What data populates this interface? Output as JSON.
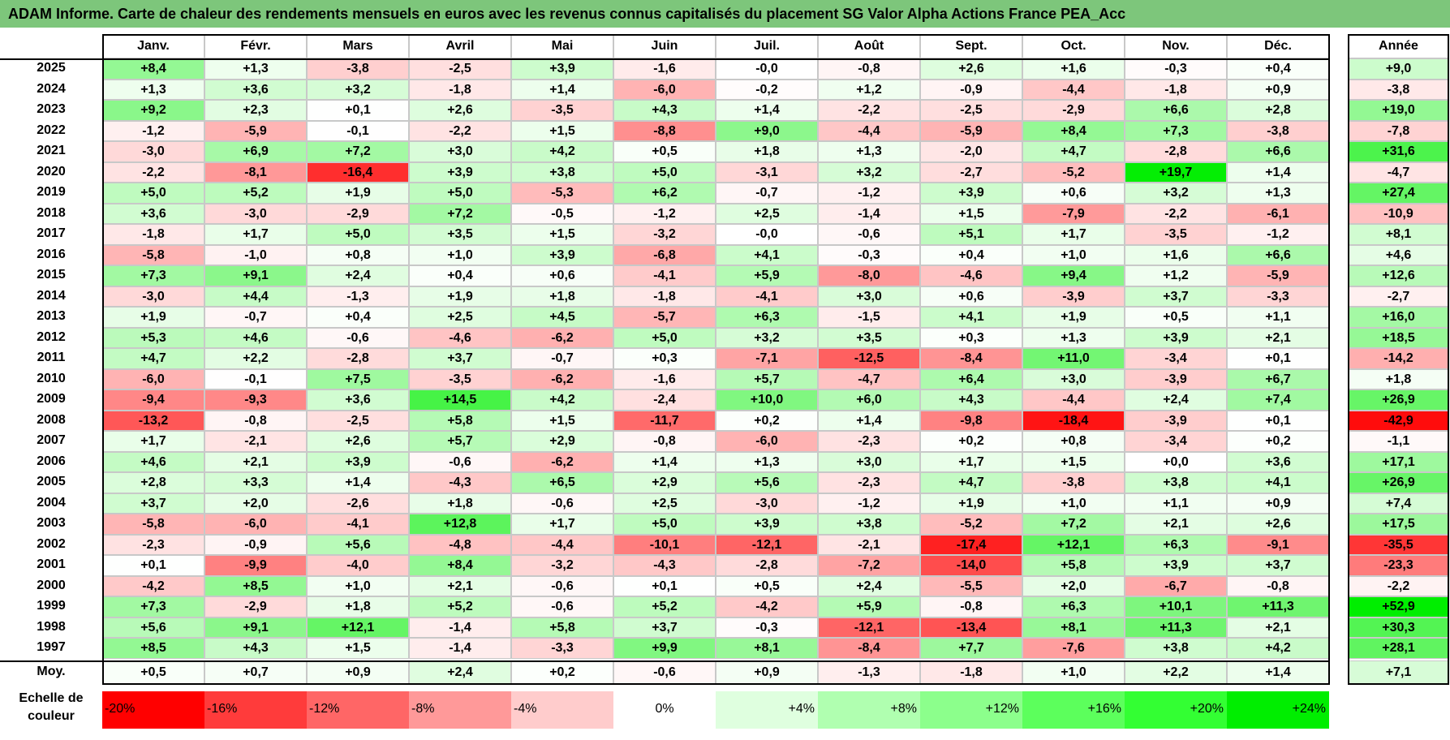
{
  "title": "ADAM Informe. Carte de chaleur des rendements mensuels en euros avec les revenus connus capitalisés du placement SG Valor Alpha Actions France PEA_Acc",
  "chart_data": {
    "type": "heatmap",
    "title": "ADAM Informe. Carte de chaleur des rendements mensuels en euros avec les revenus connus capitalisés du placement SG Valor Alpha Actions France PEA_Acc",
    "columns": [
      "Janv.",
      "Févr.",
      "Mars",
      "Avril",
      "Mai",
      "Juin",
      "Juil.",
      "Août",
      "Sept.",
      "Oct.",
      "Nov.",
      "Déc."
    ],
    "annual_column": "Année",
    "rows": [
      {
        "year": "2025",
        "values": [
          "+8,4",
          "+1,3",
          "-3,8",
          "-2,5",
          "+3,9",
          "-1,6",
          "-0,0",
          "-0,8",
          "+2,6",
          "+1,6",
          "-0,3",
          "+0,4"
        ],
        "annual": "+9,0"
      },
      {
        "year": "2024",
        "values": [
          "+1,3",
          "+3,6",
          "+3,2",
          "-1,8",
          "+1,4",
          "-6,0",
          "-0,2",
          "+1,2",
          "-0,9",
          "-4,4",
          "-1,8",
          "+0,9"
        ],
        "annual": "-3,8"
      },
      {
        "year": "2023",
        "values": [
          "+9,2",
          "+2,3",
          "+0,1",
          "+2,6",
          "-3,5",
          "+4,3",
          "+1,4",
          "-2,2",
          "-2,5",
          "-2,9",
          "+6,6",
          "+2,8"
        ],
        "annual": "+19,0"
      },
      {
        "year": "2022",
        "values": [
          "-1,2",
          "-5,9",
          "-0,1",
          "-2,2",
          "+1,5",
          "-8,8",
          "+9,0",
          "-4,4",
          "-5,9",
          "+8,4",
          "+7,3",
          "-3,8"
        ],
        "annual": "-7,8"
      },
      {
        "year": "2021",
        "values": [
          "-3,0",
          "+6,9",
          "+7,2",
          "+3,0",
          "+4,2",
          "+0,5",
          "+1,8",
          "+1,3",
          "-2,0",
          "+4,7",
          "-2,8",
          "+6,6"
        ],
        "annual": "+31,6"
      },
      {
        "year": "2020",
        "values": [
          "-2,2",
          "-8,1",
          "-16,4",
          "+3,9",
          "+3,8",
          "+5,0",
          "-3,1",
          "+3,2",
          "-2,7",
          "-5,2",
          "+19,7",
          "+1,4"
        ],
        "annual": "-4,7"
      },
      {
        "year": "2019",
        "values": [
          "+5,0",
          "+5,2",
          "+1,9",
          "+5,0",
          "-5,3",
          "+6,2",
          "-0,7",
          "-1,2",
          "+3,9",
          "+0,6",
          "+3,2",
          "+1,3"
        ],
        "annual": "+27,4"
      },
      {
        "year": "2018",
        "values": [
          "+3,6",
          "-3,0",
          "-2,9",
          "+7,2",
          "-0,5",
          "-1,2",
          "+2,5",
          "-1,4",
          "+1,5",
          "-7,9",
          "-2,2",
          "-6,1"
        ],
        "annual": "-10,9"
      },
      {
        "year": "2017",
        "values": [
          "-1,8",
          "+1,7",
          "+5,0",
          "+3,5",
          "+1,5",
          "-3,2",
          "-0,0",
          "-0,6",
          "+5,1",
          "+1,7",
          "-3,5",
          "-1,2"
        ],
        "annual": "+8,1"
      },
      {
        "year": "2016",
        "values": [
          "-5,8",
          "-1,0",
          "+0,8",
          "+1,0",
          "+3,9",
          "-6,8",
          "+4,1",
          "-0,3",
          "+0,4",
          "+1,0",
          "+1,6",
          "+6,6"
        ],
        "annual": "+4,6"
      },
      {
        "year": "2015",
        "values": [
          "+7,3",
          "+9,1",
          "+2,4",
          "+0,4",
          "+0,6",
          "-4,1",
          "+5,9",
          "-8,0",
          "-4,6",
          "+9,4",
          "+1,2",
          "-5,9"
        ],
        "annual": "+12,6"
      },
      {
        "year": "2014",
        "values": [
          "-3,0",
          "+4,4",
          "-1,3",
          "+1,9",
          "+1,8",
          "-1,8",
          "-4,1",
          "+3,0",
          "+0,6",
          "-3,9",
          "+3,7",
          "-3,3"
        ],
        "annual": "-2,7"
      },
      {
        "year": "2013",
        "values": [
          "+1,9",
          "-0,7",
          "+0,4",
          "+2,5",
          "+4,5",
          "-5,7",
          "+6,3",
          "-1,5",
          "+4,1",
          "+1,9",
          "+0,5",
          "+1,1"
        ],
        "annual": "+16,0"
      },
      {
        "year": "2012",
        "values": [
          "+5,3",
          "+4,6",
          "-0,6",
          "-4,6",
          "-6,2",
          "+5,0",
          "+3,2",
          "+3,5",
          "+0,3",
          "+1,3",
          "+3,9",
          "+2,1"
        ],
        "annual": "+18,5"
      },
      {
        "year": "2011",
        "values": [
          "+4,7",
          "+2,2",
          "-2,8",
          "+3,7",
          "-0,7",
          "+0,3",
          "-7,1",
          "-12,5",
          "-8,4",
          "+11,0",
          "-3,4",
          "+0,1"
        ],
        "annual": "-14,2"
      },
      {
        "year": "2010",
        "values": [
          "-6,0",
          "-0,1",
          "+7,5",
          "-3,5",
          "-6,2",
          "-1,6",
          "+5,7",
          "-4,7",
          "+6,4",
          "+3,0",
          "-3,9",
          "+6,7"
        ],
        "annual": "+1,8"
      },
      {
        "year": "2009",
        "values": [
          "-9,4",
          "-9,3",
          "+3,6",
          "+14,5",
          "+4,2",
          "-2,4",
          "+10,0",
          "+6,0",
          "+4,3",
          "-4,4",
          "+2,4",
          "+7,4"
        ],
        "annual": "+26,9"
      },
      {
        "year": "2008",
        "values": [
          "-13,2",
          "-0,8",
          "-2,5",
          "+5,8",
          "+1,5",
          "-11,7",
          "+0,2",
          "+1,4",
          "-9,8",
          "-18,4",
          "-3,9",
          "+0,1"
        ],
        "annual": "-42,9"
      },
      {
        "year": "2007",
        "values": [
          "+1,7",
          "-2,1",
          "+2,6",
          "+5,7",
          "+2,9",
          "-0,8",
          "-6,0",
          "-2,3",
          "+0,2",
          "+0,8",
          "-3,4",
          "+0,2"
        ],
        "annual": "-1,1"
      },
      {
        "year": "2006",
        "values": [
          "+4,6",
          "+2,1",
          "+3,9",
          "-0,6",
          "-6,2",
          "+1,4",
          "+1,3",
          "+3,0",
          "+1,7",
          "+1,5",
          "+0,0",
          "+3,6"
        ],
        "annual": "+17,1"
      },
      {
        "year": "2005",
        "values": [
          "+2,8",
          "+3,3",
          "+1,4",
          "-4,3",
          "+6,5",
          "+2,9",
          "+5,6",
          "-2,3",
          "+4,7",
          "-3,8",
          "+3,8",
          "+4,1"
        ],
        "annual": "+26,9"
      },
      {
        "year": "2004",
        "values": [
          "+3,7",
          "+2,0",
          "-2,6",
          "+1,8",
          "-0,6",
          "+2,5",
          "-3,0",
          "-1,2",
          "+1,9",
          "+1,0",
          "+1,1",
          "+0,9"
        ],
        "annual": "+7,4"
      },
      {
        "year": "2003",
        "values": [
          "-5,8",
          "-6,0",
          "-4,1",
          "+12,8",
          "+1,7",
          "+5,0",
          "+3,9",
          "+3,8",
          "-5,2",
          "+7,2",
          "+2,1",
          "+2,6"
        ],
        "annual": "+17,5"
      },
      {
        "year": "2002",
        "values": [
          "-2,3",
          "-0,9",
          "+5,6",
          "-4,8",
          "-4,4",
          "-10,1",
          "-12,1",
          "-2,1",
          "-17,4",
          "+12,1",
          "+6,3",
          "-9,1"
        ],
        "annual": "-35,5"
      },
      {
        "year": "2001",
        "values": [
          "+0,1",
          "-9,9",
          "-4,0",
          "+8,4",
          "-3,2",
          "-4,3",
          "-2,8",
          "-7,2",
          "-14,0",
          "+5,8",
          "+3,9",
          "+3,7"
        ],
        "annual": "-23,3"
      },
      {
        "year": "2000",
        "values": [
          "-4,2",
          "+8,5",
          "+1,0",
          "+2,1",
          "-0,6",
          "+0,1",
          "+0,5",
          "+2,4",
          "-5,5",
          "+2,0",
          "-6,7",
          "-0,8"
        ],
        "annual": "-2,2"
      },
      {
        "year": "1999",
        "values": [
          "+7,3",
          "-2,9",
          "+1,8",
          "+5,2",
          "-0,6",
          "+5,2",
          "-4,2",
          "+5,9",
          "-0,8",
          "+6,3",
          "+10,1",
          "+11,3"
        ],
        "annual": "+52,9"
      },
      {
        "year": "1998",
        "values": [
          "+5,6",
          "+9,1",
          "+12,1",
          "-1,4",
          "+5,8",
          "+3,7",
          "-0,3",
          "-12,1",
          "-13,4",
          "+8,1",
          "+11,3",
          "+2,1"
        ],
        "annual": "+30,3"
      },
      {
        "year": "1997",
        "values": [
          "+8,5",
          "+4,3",
          "+1,5",
          "-1,4",
          "-3,3",
          "+9,9",
          "+8,1",
          "-8,4",
          "+7,7",
          "-7,6",
          "+3,8",
          "+4,2"
        ],
        "annual": "+28,1"
      }
    ],
    "average": {
      "label": "Moy.",
      "values": [
        "+0,5",
        "+0,7",
        "+0,9",
        "+2,4",
        "+0,2",
        "-0,6",
        "+0,9",
        "-1,3",
        "-1,8",
        "+1,0",
        "+2,2",
        "+1,4"
      ],
      "annual": "+7,1"
    },
    "color_scale": {
      "label": "Echelle de couleur",
      "stops": [
        "-20%",
        "-16%",
        "-12%",
        "-8%",
        "-4%",
        "0%",
        "+4%",
        "+8%",
        "+12%",
        "+16%",
        "+20%",
        "+24%"
      ],
      "colors": [
        "#ff0000",
        "#ff3b3b",
        "#ff6666",
        "#ff9999",
        "#ffcccc",
        "#ffffff",
        "#dfffdf",
        "#b0ffb0",
        "#8cff8c",
        "#5cff5c",
        "#33ff33",
        "#00ee00"
      ]
    }
  }
}
